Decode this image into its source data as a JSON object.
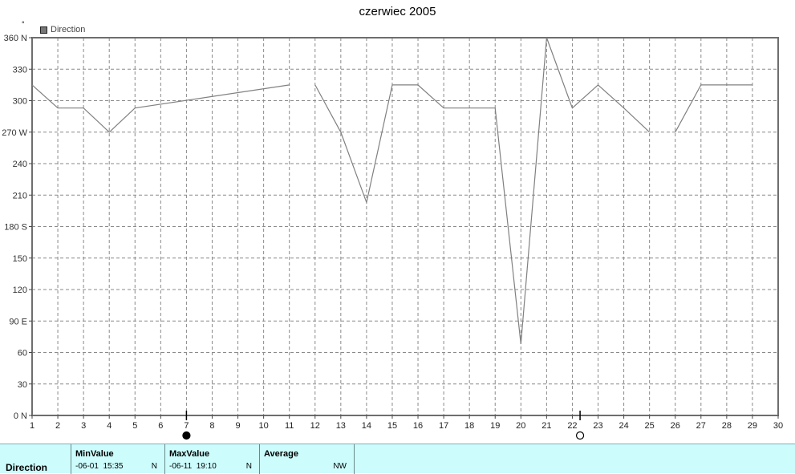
{
  "chart_data": {
    "type": "line",
    "title": "czerwiec 2005",
    "y_unit_symbol": "°",
    "legend": [
      "Direction"
    ],
    "ylim": [
      0,
      360
    ],
    "xlim": [
      1,
      30
    ],
    "y_ticks": [
      "0 N",
      "30",
      "60",
      "90 E",
      "120",
      "150",
      "180 S",
      "210",
      "240",
      "270 W",
      "300",
      "330",
      "360 N"
    ],
    "x_ticks": [
      "1",
      "2",
      "3",
      "4",
      "5",
      "6",
      "7",
      "8",
      "9",
      "10",
      "11",
      "12",
      "13",
      "14",
      "15",
      "16",
      "17",
      "18",
      "19",
      "20",
      "21",
      "22",
      "23",
      "24",
      "25",
      "26",
      "27",
      "28",
      "29",
      "30"
    ],
    "grid": true,
    "series": [
      {
        "name": "Direction",
        "color": "#808080",
        "segments": [
          [
            [
              1,
              315
            ],
            [
              2,
              293
            ],
            [
              3,
              293
            ],
            [
              4,
              270
            ],
            [
              5,
              293
            ],
            [
              11,
              315
            ]
          ],
          [
            [
              12,
              315
            ],
            [
              13,
              270
            ],
            [
              14,
              203
            ],
            [
              15,
              315
            ],
            [
              16,
              315
            ],
            [
              17,
              293
            ],
            [
              18,
              293
            ],
            [
              19,
              293
            ],
            [
              20,
              68
            ],
            [
              21,
              360
            ],
            [
              22,
              293
            ],
            [
              23,
              315
            ],
            [
              24,
              293
            ],
            [
              25,
              270
            ]
          ],
          [
            [
              26,
              270
            ],
            [
              27,
              315
            ],
            [
              28,
              315
            ],
            [
              29,
              315
            ]
          ]
        ]
      }
    ],
    "markers": [
      {
        "kind": "min",
        "x": 7,
        "style": "filled-circle"
      },
      {
        "kind": "max",
        "x": 22.3,
        "style": "open-circle"
      }
    ]
  },
  "stats": {
    "series_label": "Direction",
    "min": {
      "header": "MinValue",
      "date": "-06-01",
      "time": "15:35",
      "value": "N"
    },
    "max": {
      "header": "MaxValue",
      "date": "-06-11",
      "time": "19:10",
      "value": "N"
    },
    "average": {
      "header": "Average",
      "value": "NW"
    }
  }
}
